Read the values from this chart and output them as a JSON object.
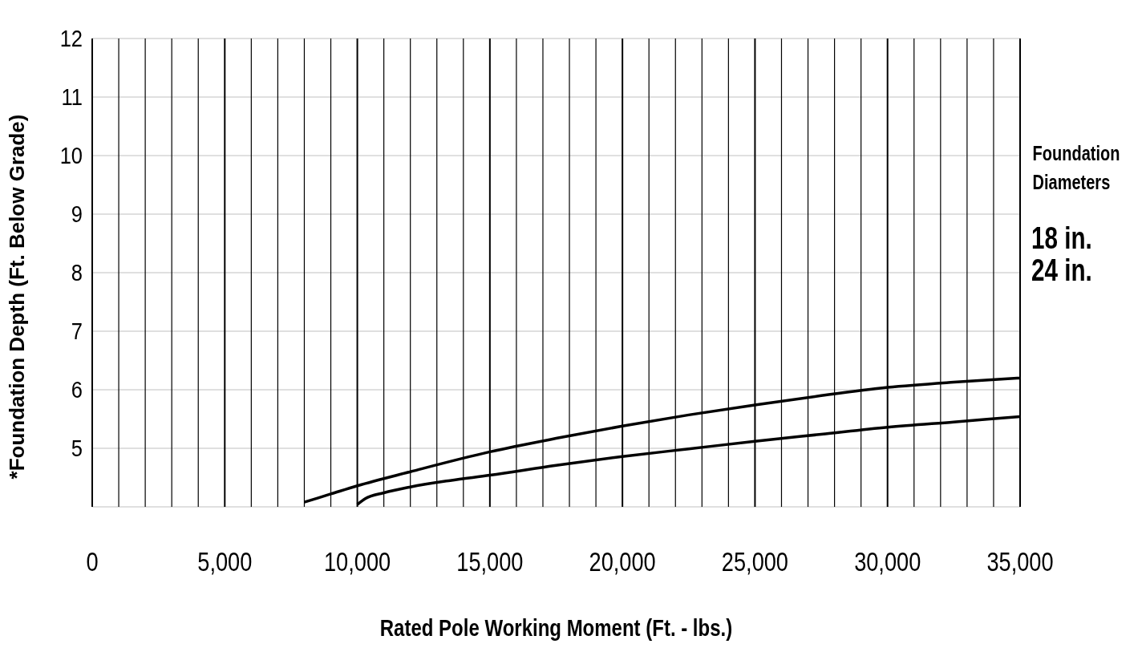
{
  "chart_data": {
    "type": "line",
    "xlabel": "Rated Pole Working Moment (Ft. - lbs.)",
    "ylabel": "*Foundation Depth (Ft. Below Grade)",
    "legend_title": "Foundation Diameters",
    "legend": "right",
    "grid": true,
    "marker": "none",
    "line_style": "solid",
    "xlim": [
      0,
      35000
    ],
    "ylim": [
      4,
      12
    ],
    "xticks": [
      0,
      {
        "value": 1000,
        "label": null
      },
      {
        "value": 2000,
        "label": null
      },
      {
        "value": 3000,
        "label": null
      },
      {
        "value": 4000,
        "label": null
      },
      "5,000",
      {
        "value": 6000,
        "label": null
      },
      {
        "value": 7000,
        "label": null
      },
      {
        "value": 8000,
        "label": null
      },
      {
        "value": 9000,
        "label": null
      },
      {
        "value": 10000,
        "label": "10,000"
      },
      {
        "value": 11000,
        "label": null
      },
      {
        "value": 12000,
        "label": null
      },
      {
        "value": 13000,
        "label": null
      },
      {
        "value": 14000,
        "label": null
      },
      {
        "value": 15000,
        "label": "15,000"
      },
      {
        "value": 16000,
        "label": null
      },
      {
        "value": 17000,
        "label": null
      },
      {
        "value": 18000,
        "label": null
      },
      {
        "value": 19000,
        "label": null
      },
      {
        "value": 20000,
        "label": "20,000"
      },
      {
        "value": 21000,
        "label": null
      },
      {
        "value": 22000,
        "label": null
      },
      {
        "value": 23000,
        "label": null
      },
      {
        "value": 24000,
        "label": null
      },
      {
        "value": 25000,
        "label": "25,000"
      },
      {
        "value": 26000,
        "label": null
      },
      {
        "value": 27000,
        "label": null
      },
      {
        "value": 28000,
        "label": null
      },
      {
        "value": 29000,
        "label": null
      },
      {
        "value": 30000,
        "label": "30,000"
      },
      {
        "value": 31000,
        "label": null
      },
      {
        "value": 32000,
        "label": null
      },
      {
        "value": 33000,
        "label": null
      },
      {
        "value": 34000,
        "label": null
      },
      {
        "value": 35000,
        "label": "35,000"
      }
    ],
    "yticks": [
      {
        "value": 4,
        "label": null
      },
      5,
      6,
      7,
      8,
      9,
      10,
      11,
      12
    ],
    "series": [
      {
        "name": "18 in.",
        "color": "#000000",
        "x": [
          8000,
          9000,
          10000,
          12000,
          15000,
          17500,
          20000,
          22500,
          25000,
          27500,
          30000,
          32500,
          35000
        ],
        "values": [
          4.08,
          4.22,
          4.36,
          4.6,
          4.94,
          5.17,
          5.38,
          5.57,
          5.74,
          5.9,
          6.04,
          6.13,
          6.2
        ]
      },
      {
        "name": "24 in.",
        "color": "#000000",
        "x": [
          10000,
          10300,
          11000,
          12000,
          13500,
          15000,
          17500,
          20000,
          22500,
          25000,
          27500,
          30000,
          32500,
          35000
        ],
        "values": [
          4.04,
          4.14,
          4.24,
          4.34,
          4.45,
          4.54,
          4.71,
          4.86,
          4.99,
          5.12,
          5.24,
          5.36,
          5.45,
          5.54
        ]
      }
    ]
  }
}
